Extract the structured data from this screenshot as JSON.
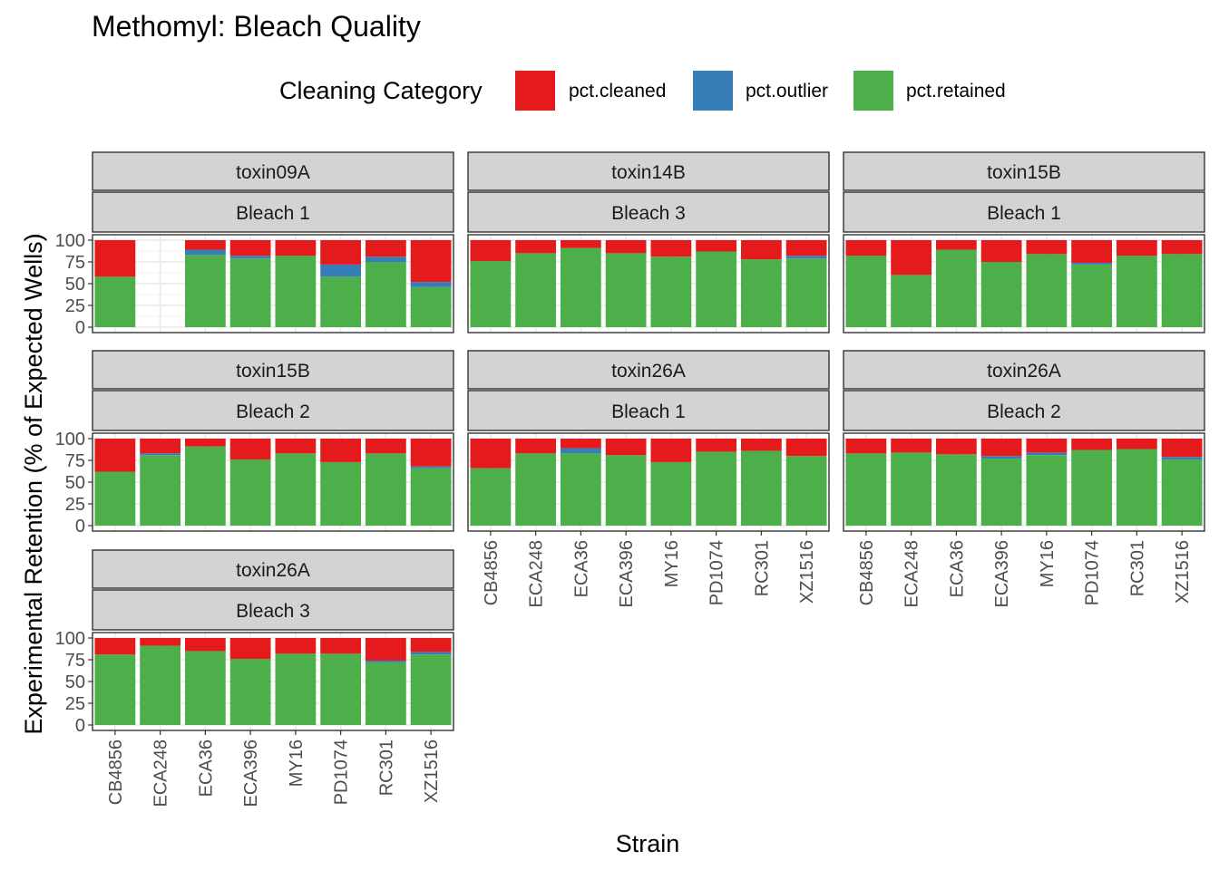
{
  "chart_data": {
    "type": "bar",
    "stacked": true,
    "title": "Methomyl: Bleach Quality",
    "xlabel": "Strain",
    "ylabel": "Experimental Retention (% of Expected Wells)",
    "ylim": [
      0,
      100
    ],
    "yticks": [
      0,
      25,
      50,
      75,
      100
    ],
    "categories": [
      "CB4856",
      "ECA248",
      "ECA36",
      "ECA396",
      "MY16",
      "PD1074",
      "RC301",
      "XZ1516"
    ],
    "legend": {
      "title": "Cleaning Category",
      "position": "top",
      "entries": [
        {
          "name": "pct.cleaned",
          "color": "#E41A1C"
        },
        {
          "name": "pct.outlier",
          "color": "#377EB8"
        },
        {
          "name": "pct.retained",
          "color": "#4DAF4A"
        }
      ]
    },
    "panels": [
      {
        "toxin": "toxin09A",
        "bleach": "Bleach 1",
        "retained": [
          58,
          null,
          83,
          79,
          82,
          58,
          75,
          46
        ],
        "outlier": [
          0,
          null,
          6,
          3,
          0,
          14,
          6,
          6
        ],
        "cleaned": [
          42,
          null,
          11,
          18,
          18,
          28,
          19,
          48
        ]
      },
      {
        "toxin": "toxin14B",
        "bleach": "Bleach 3",
        "retained": [
          76,
          85,
          91,
          85,
          81,
          87,
          78,
          79
        ],
        "outlier": [
          0,
          0,
          0,
          0,
          0,
          0,
          0,
          3
        ],
        "cleaned": [
          24,
          15,
          9,
          15,
          19,
          13,
          22,
          18
        ]
      },
      {
        "toxin": "toxin15B",
        "bleach": "Bleach 1",
        "retained": [
          82,
          60,
          89,
          75,
          84,
          72,
          82,
          84
        ],
        "outlier": [
          0,
          0,
          0,
          0,
          0,
          2,
          0,
          0
        ],
        "cleaned": [
          18,
          40,
          11,
          25,
          16,
          26,
          18,
          16
        ]
      },
      {
        "toxin": "toxin15B",
        "bleach": "Bleach 2",
        "retained": [
          62,
          81,
          91,
          76,
          83,
          73,
          83,
          66
        ],
        "outlier": [
          0,
          2,
          0,
          0,
          0,
          0,
          0,
          2
        ],
        "cleaned": [
          38,
          17,
          9,
          24,
          17,
          27,
          17,
          32
        ]
      },
      {
        "toxin": "toxin26A",
        "bleach": "Bleach 1",
        "retained": [
          66,
          83,
          83,
          81,
          73,
          85,
          86,
          80
        ],
        "outlier": [
          0,
          0,
          6,
          0,
          0,
          0,
          0,
          0
        ],
        "cleaned": [
          34,
          17,
          11,
          19,
          27,
          15,
          14,
          20
        ]
      },
      {
        "toxin": "toxin26A",
        "bleach": "Bleach 2",
        "retained": [
          83,
          84,
          82,
          77,
          81,
          87,
          88,
          76
        ],
        "outlier": [
          0,
          0,
          0,
          3,
          3,
          0,
          0,
          3
        ],
        "cleaned": [
          17,
          16,
          18,
          20,
          16,
          13,
          12,
          21
        ]
      },
      {
        "toxin": "toxin26A",
        "bleach": "Bleach 3",
        "retained": [
          81,
          91,
          85,
          76,
          82,
          82,
          72,
          81
        ],
        "outlier": [
          0,
          0,
          0,
          0,
          0,
          0,
          2,
          3
        ],
        "cleaned": [
          19,
          9,
          15,
          24,
          18,
          18,
          26,
          16
        ]
      }
    ]
  }
}
